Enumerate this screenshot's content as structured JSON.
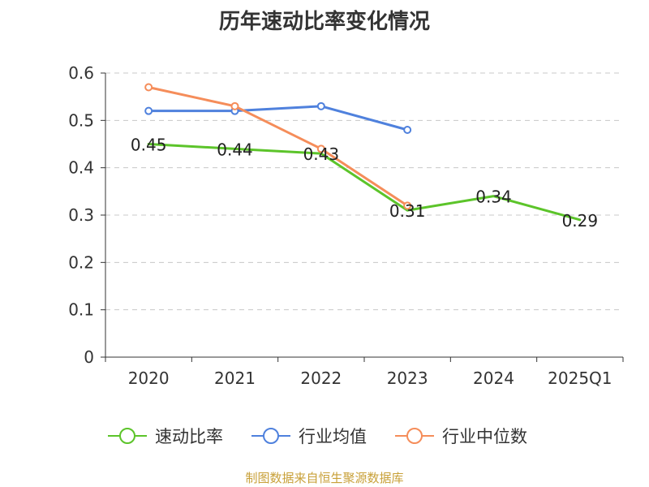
{
  "chart_data": {
    "type": "line",
    "title": "历年速动比率变化情况",
    "categories": [
      "2020",
      "2021",
      "2022",
      "2023",
      "2024",
      "2025Q1"
    ],
    "ylim": [
      0,
      0.6
    ],
    "yticks": [
      "0",
      "0.1",
      "0.2",
      "0.3",
      "0.4",
      "0.5",
      "0.6"
    ],
    "ytick_values": [
      0,
      0.1,
      0.2,
      0.3,
      0.4,
      0.5,
      0.6
    ],
    "grid": true,
    "legend_position": "bottom",
    "series": [
      {
        "name": "速动比率",
        "color": "#5cc42a",
        "values": [
          0.45,
          0.44,
          0.43,
          0.31,
          0.34,
          0.29
        ],
        "labels": [
          "0.45",
          "0.44",
          "0.43",
          "0.31",
          "0.34",
          "0.29"
        ],
        "show_markers": false,
        "show_labels": true
      },
      {
        "name": "行业均值",
        "color": "#4f81dd",
        "values": [
          0.52,
          0.52,
          0.53,
          0.48,
          null,
          null
        ],
        "show_markers": true,
        "show_labels": false
      },
      {
        "name": "行业中位数",
        "color": "#f58d5a",
        "values": [
          0.57,
          0.53,
          0.44,
          0.32,
          null,
          null
        ],
        "show_markers": true,
        "show_labels": false
      }
    ]
  },
  "source": "制图数据来自恒生聚源数据库"
}
